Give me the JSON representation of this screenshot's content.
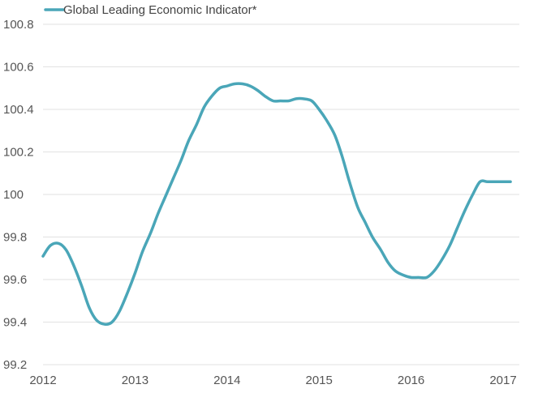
{
  "colors": {
    "series": "#4aa6b8",
    "gridline": "#e2e2e2",
    "axis_text": "#555555"
  },
  "chart_data": {
    "type": "line",
    "title": "",
    "xlabel": "",
    "ylabel": "",
    "xlim": [
      2012,
      2017.08
    ],
    "ylim": [
      99.2,
      100.8
    ],
    "grid": "horizontal",
    "legend_position": "top-left",
    "y_ticks": [
      "99.2",
      "99.4",
      "99.6",
      "99.8",
      "100",
      "100.2",
      "100.4",
      "100.6",
      "100.8"
    ],
    "x_ticks": [
      "2012",
      "2013",
      "2014",
      "2015",
      "2016",
      "2017"
    ],
    "series": [
      {
        "name": "Global Leading Economic Indicator*",
        "x": [
          2012.0,
          2012.08,
          2012.17,
          2012.25,
          2012.33,
          2012.42,
          2012.5,
          2012.58,
          2012.67,
          2012.75,
          2012.83,
          2012.92,
          2013.0,
          2013.08,
          2013.17,
          2013.25,
          2013.33,
          2013.42,
          2013.5,
          2013.58,
          2013.67,
          2013.75,
          2013.83,
          2013.92,
          2014.0,
          2014.08,
          2014.17,
          2014.25,
          2014.33,
          2014.42,
          2014.5,
          2014.58,
          2014.67,
          2014.75,
          2014.83,
          2014.92,
          2015.0,
          2015.08,
          2015.17,
          2015.25,
          2015.33,
          2015.42,
          2015.5,
          2015.58,
          2015.67,
          2015.75,
          2015.83,
          2015.92,
          2016.0,
          2016.08,
          2016.17,
          2016.25,
          2016.33,
          2016.42,
          2016.5,
          2016.58,
          2016.67,
          2016.75,
          2016.83,
          2016.92,
          2017.0,
          2017.08
        ],
        "values": [
          99.71,
          99.76,
          99.77,
          99.74,
          99.67,
          99.57,
          99.47,
          99.41,
          99.39,
          99.4,
          99.45,
          99.54,
          99.63,
          99.73,
          99.82,
          99.91,
          99.99,
          100.08,
          100.16,
          100.25,
          100.33,
          100.41,
          100.46,
          100.5,
          100.51,
          100.52,
          100.52,
          100.51,
          100.49,
          100.46,
          100.44,
          100.44,
          100.44,
          100.45,
          100.45,
          100.44,
          100.4,
          100.35,
          100.28,
          100.18,
          100.06,
          99.94,
          99.87,
          99.8,
          99.74,
          99.68,
          99.64,
          99.62,
          99.61,
          99.61,
          99.61,
          99.64,
          99.69,
          99.76,
          99.84,
          99.92,
          100.0,
          100.06,
          100.06,
          100.06,
          100.06,
          100.06
        ]
      }
    ]
  }
}
